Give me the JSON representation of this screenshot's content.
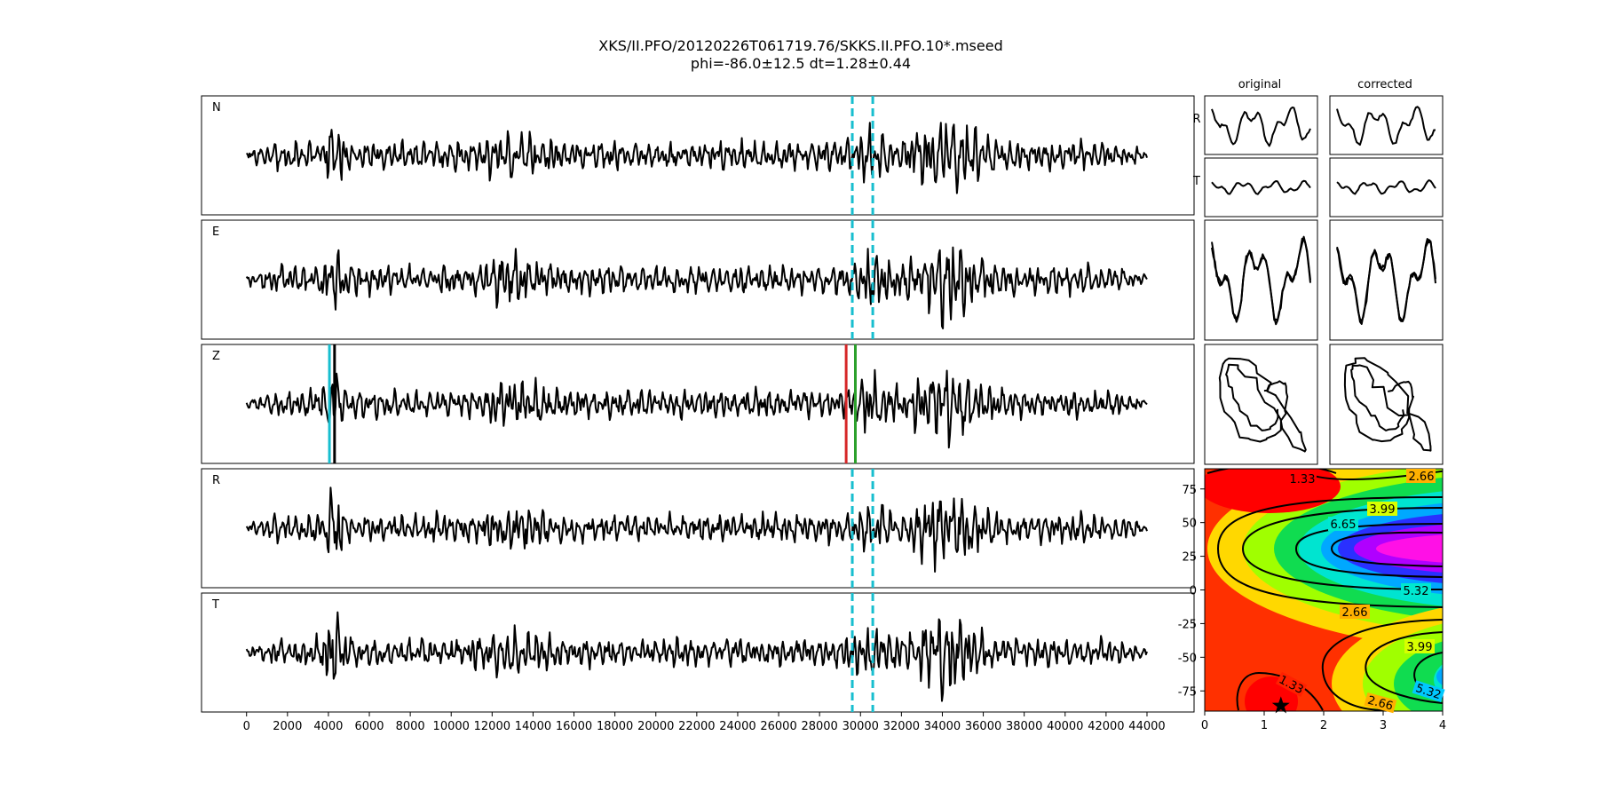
{
  "title": "XKS/II.PFO/20120226T061719.76/SKKS.II.PFO.10*.mseed",
  "subtitle": "phi=-86.0±12.5 dt=1.28±0.44",
  "colors": {
    "trace": "#000000",
    "window": "#17becf",
    "marker_cyan": "#17becf",
    "marker_black": "#000000",
    "marker_red": "#d62728",
    "marker_green": "#2ca02c",
    "corrected_overlay": "#ff0000"
  },
  "chart_data": [
    {
      "type": "line",
      "name": "seismogram-panels",
      "panels": [
        "N",
        "E",
        "Z",
        "R",
        "T"
      ],
      "x_ticks": [
        0,
        2000,
        4000,
        6000,
        8000,
        10000,
        12000,
        14000,
        16000,
        18000,
        20000,
        22000,
        24000,
        26000,
        28000,
        30000,
        32000,
        34000,
        36000,
        38000,
        40000,
        42000,
        44000
      ],
      "xlim": [
        -2200,
        46300
      ],
      "trace_range": [
        0,
        44000
      ],
      "window": [
        29600,
        30600
      ],
      "z_markers": [
        {
          "x": 4050,
          "color": "cyan"
        },
        {
          "x": 4300,
          "color": "black"
        },
        {
          "x": 29300,
          "color": "red"
        },
        {
          "x": 29750,
          "color": "green"
        }
      ]
    },
    {
      "type": "line",
      "name": "particle-panels",
      "column_titles": [
        "original",
        "corrected"
      ],
      "row_labels": [
        "R",
        "T"
      ]
    },
    {
      "type": "heatmap",
      "name": "error-surface",
      "x_ticks": [
        0,
        1,
        2,
        3,
        4
      ],
      "y_ticks": [
        75,
        50,
        25,
        0,
        -25,
        -50,
        -75
      ],
      "xlim": [
        0,
        4
      ],
      "ylim": [
        -90,
        90
      ],
      "contour_labels": [
        "1.33",
        "2.66",
        "3.99",
        "6.65",
        "5.32",
        "2.66",
        "3.99",
        "1.33",
        "5.32",
        "2.66"
      ],
      "best_fit": {
        "dt": 1.28,
        "phi": -86.0
      }
    }
  ]
}
